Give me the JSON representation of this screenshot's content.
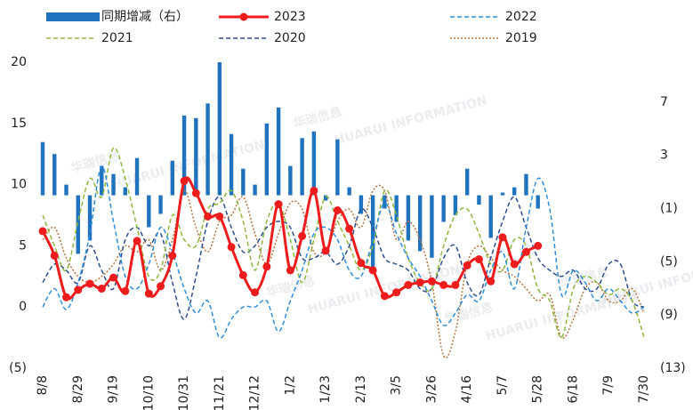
{
  "chart_data": {
    "type": "combo",
    "watermark": "华瑞信息",
    "watermark_sub": "HUARUI INFORMATION",
    "categories": [
      "8/8",
      null,
      null,
      "8/29",
      null,
      null,
      "9/19",
      null,
      null,
      "10/10",
      null,
      null,
      "10/31",
      null,
      null,
      "11/21",
      null,
      null,
      "12/12",
      null,
      null,
      "1/2",
      null,
      null,
      "1/23",
      null,
      null,
      "2/13",
      null,
      null,
      "3/5",
      null,
      null,
      "3/26",
      null,
      null,
      "4/16",
      null,
      null,
      "5/7",
      null,
      null,
      "5/28",
      null,
      null,
      "6/18",
      null,
      null,
      "7/9",
      null,
      null,
      "7/30"
    ],
    "ylim": [
      -5,
      20
    ],
    "yticks": [
      {
        "value": -5,
        "label": "(5)"
      },
      0,
      5,
      10,
      15,
      20
    ],
    "y2lim": [
      -13,
      10
    ],
    "y2ticks": [
      {
        "value": -13,
        "label": "(13)"
      },
      {
        "value": -9,
        "label": "(9)"
      },
      {
        "value": -5,
        "label": "(5)"
      },
      {
        "value": -1,
        "label": "(1)"
      },
      3,
      7
    ],
    "negative_label_color": "#e00000",
    "series": [
      {
        "name": "同期增减（右）",
        "type": "bar",
        "axis": "y2",
        "color": "#1f72bd",
        "values": [
          4.0,
          3.1,
          0.8,
          -4.4,
          -3.4,
          2.2,
          1.6,
          0.6,
          2.8,
          -2.4,
          -1.4,
          2.6,
          6.0,
          5.8,
          6.9,
          10.0,
          4.6,
          2.0,
          0.8,
          5.4,
          6.6,
          2.2,
          4.3,
          4.8,
          -0.4,
          4.2,
          0.6,
          -1.4,
          -5.4,
          -1.0,
          -2.0,
          -3.4,
          -4.2,
          -4.7,
          -2.0,
          -1.5,
          2.0,
          -0.7,
          -3.2,
          0.2,
          0.6,
          1.6,
          -1.0,
          null,
          null,
          null,
          null,
          null,
          null,
          null,
          null,
          null
        ]
      },
      {
        "name": "2023",
        "type": "line",
        "style": "solid",
        "markers": true,
        "color": "#ee1c1c",
        "values": [
          6.2,
          4.2,
          0.8,
          1.4,
          1.9,
          1.5,
          2.4,
          1.3,
          5.4,
          1.1,
          1.7,
          4.2,
          10.3,
          9.3,
          7.4,
          7.4,
          4.9,
          2.6,
          1.2,
          3.3,
          8.4,
          3.0,
          5.8,
          9.5,
          4.6,
          7.9,
          6.4,
          3.6,
          3.0,
          0.9,
          1.2,
          1.8,
          2.0,
          2.1,
          1.8,
          1.8,
          3.4,
          3.9,
          2.1,
          5.7,
          3.5,
          4.5,
          5.0,
          null,
          null,
          null,
          null,
          null,
          null,
          null,
          null,
          null
        ]
      },
      {
        "name": "2022",
        "type": "line",
        "style": "dashed",
        "color": "#2f8fdc",
        "values": [
          0.0,
          1.5,
          -0.2,
          2.0,
          6.0,
          11.5,
          7.0,
          2.5,
          1.5,
          3.5,
          6.5,
          4.5,
          1.5,
          -0.5,
          0.5,
          -2.5,
          -1.0,
          0.0,
          0.0,
          0.5,
          -2.0,
          0.5,
          3.0,
          6.0,
          6.5,
          5.5,
          3.0,
          2.5,
          5.5,
          8.5,
          6.0,
          4.0,
          2.5,
          0.5,
          -1.5,
          -0.5,
          1.0,
          0.5,
          3.0,
          4.5,
          1.5,
          6.5,
          10.5,
          8.0,
          1.0,
          3.0,
          2.0,
          0.5,
          1.5,
          0.5,
          -0.5,
          0.0
        ]
      },
      {
        "name": "2021",
        "type": "line",
        "style": "dashed",
        "color": "#8cb83c",
        "values": [
          7.5,
          5.0,
          3.0,
          7.0,
          10.5,
          9.0,
          13.0,
          10.5,
          6.5,
          2.5,
          3.0,
          7.5,
          5.5,
          5.0,
          8.0,
          8.5,
          9.5,
          7.0,
          3.0,
          7.0,
          8.5,
          5.5,
          2.0,
          5.5,
          9.0,
          7.0,
          5.0,
          3.0,
          5.0,
          9.5,
          7.5,
          4.0,
          2.0,
          1.5,
          5.0,
          7.5,
          8.0,
          6.0,
          3.5,
          3.0,
          5.5,
          5.0,
          1.5,
          0.5,
          -2.5,
          1.5,
          2.5,
          2.0,
          1.0,
          1.5,
          0.5,
          -2.5
        ]
      },
      {
        "name": "2020",
        "type": "line",
        "style": "dashed",
        "color": "#2b4f8e",
        "values": [
          2.0,
          3.5,
          3.0,
          2.0,
          5.0,
          3.0,
          1.5,
          5.5,
          6.5,
          5.0,
          6.0,
          2.0,
          -1.0,
          2.5,
          7.0,
          9.0,
          6.5,
          4.5,
          5.0,
          6.5,
          7.0,
          6.5,
          4.0,
          4.0,
          4.5,
          3.5,
          5.0,
          8.0,
          6.5,
          4.0,
          3.5,
          3.0,
          1.5,
          1.5,
          4.0,
          5.0,
          2.0,
          1.0,
          4.0,
          7.0,
          9.0,
          6.5,
          4.0,
          3.0,
          2.5,
          3.0,
          1.5,
          1.5,
          3.5,
          3.5,
          0.5,
          0.0
        ]
      },
      {
        "name": "2019",
        "type": "line",
        "style": "dotted",
        "color": "#b8733a",
        "values": [
          5.5,
          6.5,
          4.0,
          2.5,
          2.0,
          2.5,
          3.5,
          5.0,
          4.5,
          5.5,
          3.0,
          5.5,
          9.5,
          6.5,
          4.5,
          7.0,
          7.5,
          9.0,
          6.0,
          3.5,
          6.0,
          8.5,
          8.0,
          4.5,
          4.5,
          7.0,
          8.0,
          6.5,
          9.5,
          9.5,
          5.5,
          7.0,
          5.5,
          2.0,
          -4.0,
          -2.0,
          3.5,
          5.0,
          4.0,
          3.0,
          2.5,
          1.5,
          0.5,
          1.0,
          -2.5,
          -1.0,
          1.5,
          2.0,
          0.5,
          0.5,
          1.5,
          -0.5
        ]
      }
    ]
  }
}
